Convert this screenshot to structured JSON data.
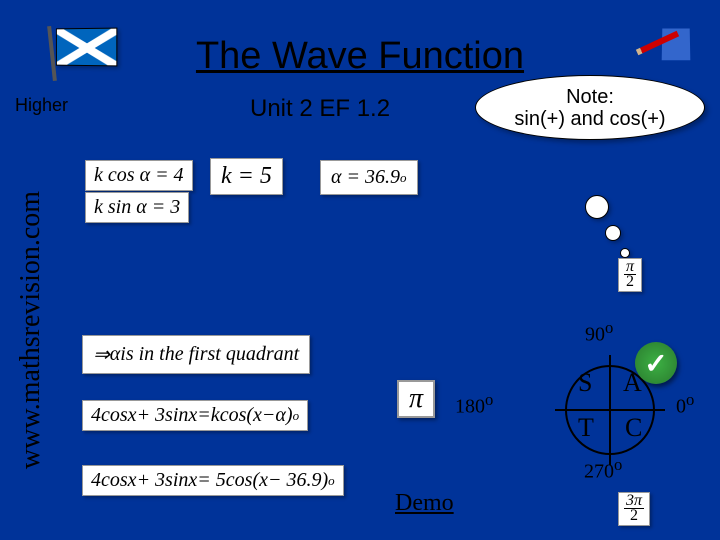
{
  "slide": {
    "title": "The Wave Function",
    "level": "Higher",
    "unit": "Unit 2 EF 1.2",
    "sidebar_url": "www.mathsrevision.com",
    "demo_label": "Demo",
    "pi": "π"
  },
  "note": {
    "line1": "Note:",
    "line2": "sin(+) and cos(+)"
  },
  "equations": {
    "kcos": "k cos α = 4",
    "ksin": "k sin α = 3",
    "k_val": "k = 5",
    "alpha_val": "α = 36.9",
    "first_quad": "⇒ α is in the first quadrant",
    "expand": "4cos x + 3sin x = k cos(x − α)",
    "result": "4cos x + 3sin x = 5cos(x − 36.9)"
  },
  "quadrants": {
    "S": "S",
    "A": "A",
    "T": "T",
    "C": "C",
    "deg90": "90",
    "deg180": "180",
    "deg0": "0",
    "deg270": "270"
  },
  "colors": {
    "bg": "#003399",
    "flag_blue": "#0065bd"
  }
}
